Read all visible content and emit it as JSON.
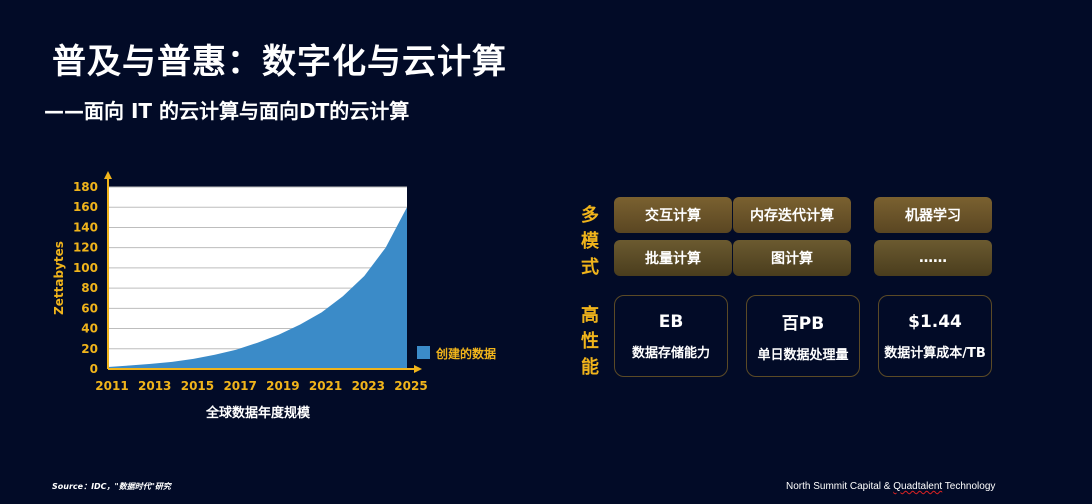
{
  "title": "普及与普惠：数字化与云计算",
  "subtitle": "——面向 IT 的云计算与面向DT的云计算",
  "chart_data": {
    "type": "area",
    "x": [
      2011,
      2012,
      2013,
      2014,
      2015,
      2016,
      2017,
      2018,
      2019,
      2020,
      2021,
      2022,
      2023,
      2024,
      2025
    ],
    "series": [
      {
        "name": "创建的数据",
        "values": [
          2,
          3.5,
          5,
          7,
          10,
          14,
          19,
          26,
          34,
          44,
          56,
          72,
          92,
          120,
          160
        ]
      }
    ],
    "xticks": [
      "2011",
      "2013",
      "2015",
      "2017",
      "2019",
      "2021",
      "2023",
      "2025"
    ],
    "yticks": [
      "0",
      "20",
      "40",
      "60",
      "80",
      "100",
      "120",
      "140",
      "160",
      "180"
    ],
    "ylim": [
      0,
      180
    ],
    "xlim": [
      2011,
      2025
    ],
    "ylabel": "Zettabytes",
    "xlabel": "全球数据年度规模",
    "legend": "创建的数据",
    "legend_position": "right",
    "grid": true,
    "area_color": "#3b8bc8",
    "axis_color": "#f0b41b"
  },
  "multi_mode": {
    "label_chars": [
      "多",
      "模",
      "式"
    ],
    "items": [
      "交互计算",
      "内存迭代计算",
      "机器学习",
      "批量计算",
      "图计算",
      "……"
    ]
  },
  "high_perf": {
    "label_chars": [
      "高",
      "性",
      "能"
    ],
    "items": [
      {
        "value": "EB",
        "label": "数据存储能力"
      },
      {
        "value": "百PB",
        "label": "单日数据处理量"
      },
      {
        "value": "$1.44",
        "label": "数据计算成本/TB"
      }
    ]
  },
  "footer": {
    "source": "Source：IDC，\"数据时代\"研究",
    "credit_start": "North Summit Capital & ",
    "credit_squiggle": "Quadtalent",
    "credit_end": " Technology"
  },
  "colors": {
    "background": "#020b27",
    "accent": "#f0b41b",
    "box": "#6b5428"
  }
}
